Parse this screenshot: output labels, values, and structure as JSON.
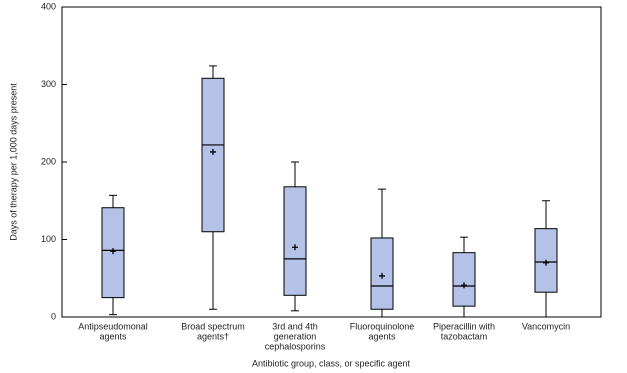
{
  "chart_data": {
    "type": "box",
    "x_label": "Antibiotic group, class, or specific agent",
    "y_label": "Days of therapy per 1,000 days present",
    "categories": [
      [
        "Antipseudomonal",
        "agents"
      ],
      [
        "Broad spectrum",
        "agents†"
      ],
      [
        "3rd and 4th",
        "generation",
        "cephalosporins"
      ],
      [
        "Fluoroquinolone",
        "agents"
      ],
      [
        "Piperacillin with",
        "tazobactam"
      ],
      [
        "Vancomycin"
      ]
    ],
    "min": [
      3,
      10,
      8,
      0,
      0,
      0
    ],
    "q1": [
      25,
      110,
      28,
      10,
      14,
      32
    ],
    "median": [
      86,
      222,
      75,
      40,
      40,
      71
    ],
    "q3": [
      141,
      308,
      168,
      102,
      83,
      114
    ],
    "max": [
      157,
      324,
      200,
      165,
      103,
      150
    ],
    "mean": [
      85,
      213,
      90,
      53,
      41,
      70
    ],
    "color": "#b3c2e6",
    "ylim": [
      0,
      400
    ],
    "yticks": [
      0,
      100,
      200,
      300,
      400
    ]
  }
}
